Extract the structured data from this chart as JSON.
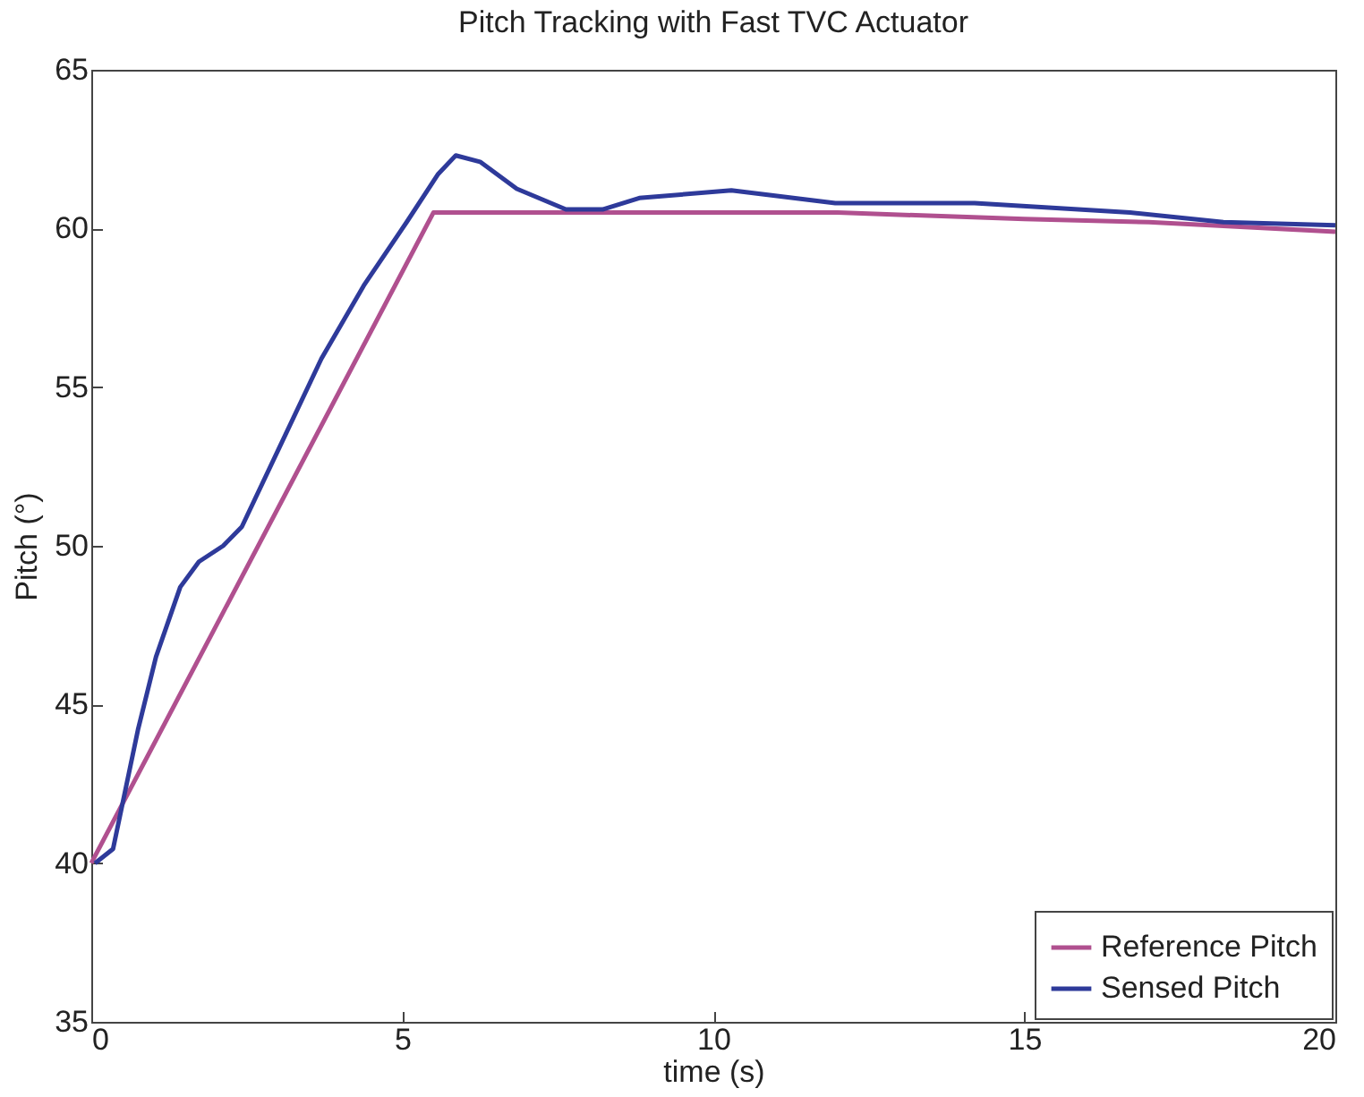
{
  "chart_data": {
    "type": "line",
    "title": "Pitch Tracking with Fast TVC Actuator",
    "xlabel": "time (s)",
    "ylabel": "Pitch (°)",
    "xlim": [
      0,
      20
    ],
    "xticks": [
      0,
      5,
      10,
      15,
      20
    ],
    "ylim": [
      35,
      65
    ],
    "yticks": [
      35,
      40,
      45,
      50,
      55,
      60,
      65
    ],
    "legend": "bottom right",
    "series": [
      {
        "name": "Reference Pitch",
        "color": "#b0508f",
        "x": [
          0,
          5.5,
          10,
          12,
          15,
          17,
          20
        ],
        "values": [
          40,
          60.5,
          60.5,
          60.5,
          60.3,
          60.2,
          59.9
        ]
      },
      {
        "name": "Sensed Pitch",
        "color": "#2e3a9a",
        "x": [
          0.06,
          0.35,
          0.75,
          1.04,
          1.43,
          1.73,
          2.12,
          2.42,
          3.0,
          3.7,
          4.38,
          5.07,
          5.57,
          5.86,
          6.25,
          6.84,
          7.63,
          8.22,
          8.81,
          10.29,
          11.96,
          14.2,
          16.7,
          18.2,
          20
        ],
        "values": [
          40,
          40.45,
          44.2,
          46.5,
          48.7,
          49.5,
          50,
          50.6,
          53,
          55.9,
          58.2,
          60.2,
          61.7,
          62.3,
          62.1,
          61.25,
          60.6,
          60.6,
          60.96,
          61.2,
          60.8,
          60.8,
          60.5,
          60.2,
          60.1
        ]
      }
    ]
  }
}
